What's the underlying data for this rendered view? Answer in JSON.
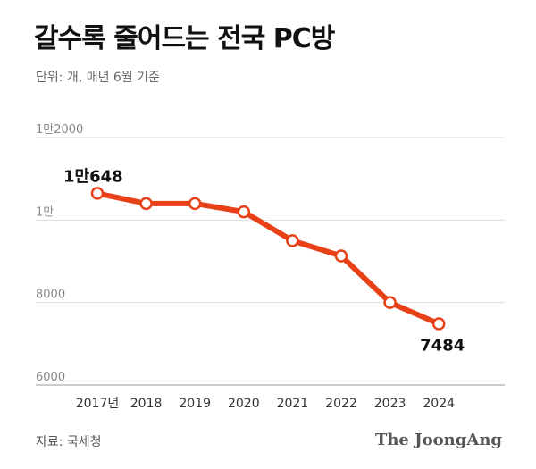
{
  "title": "갈수록 줄어드는 전국 PC방",
  "unit_note": "단위: 개, 매년 6월 기준",
  "source": "자료: 국세청",
  "brand": "The JoongAng",
  "colors": {
    "line": "#e84118",
    "point_fill": "#ffffff",
    "grid": "#dddddd"
  },
  "chart_data": {
    "type": "line",
    "title": "갈수록 줄어드는 전국 PC방",
    "categories": [
      "2017년",
      "2018",
      "2019",
      "2020",
      "2021",
      "2022",
      "2023",
      "2024"
    ],
    "series": [
      {
        "values": [
          10648,
          10400,
          10400,
          10200,
          9500,
          9130,
          8000,
          7484
        ]
      }
    ],
    "ylim": [
      6000,
      12000
    ],
    "yticks": [
      6000,
      8000,
      10000,
      12000
    ],
    "ytick_labels": [
      "6000",
      "8000",
      "1만",
      "1만2000"
    ],
    "annotations": [
      {
        "index": 0,
        "text": "1만648"
      },
      {
        "index": 7,
        "text": "7484"
      }
    ],
    "grid": true,
    "legend": "none"
  }
}
